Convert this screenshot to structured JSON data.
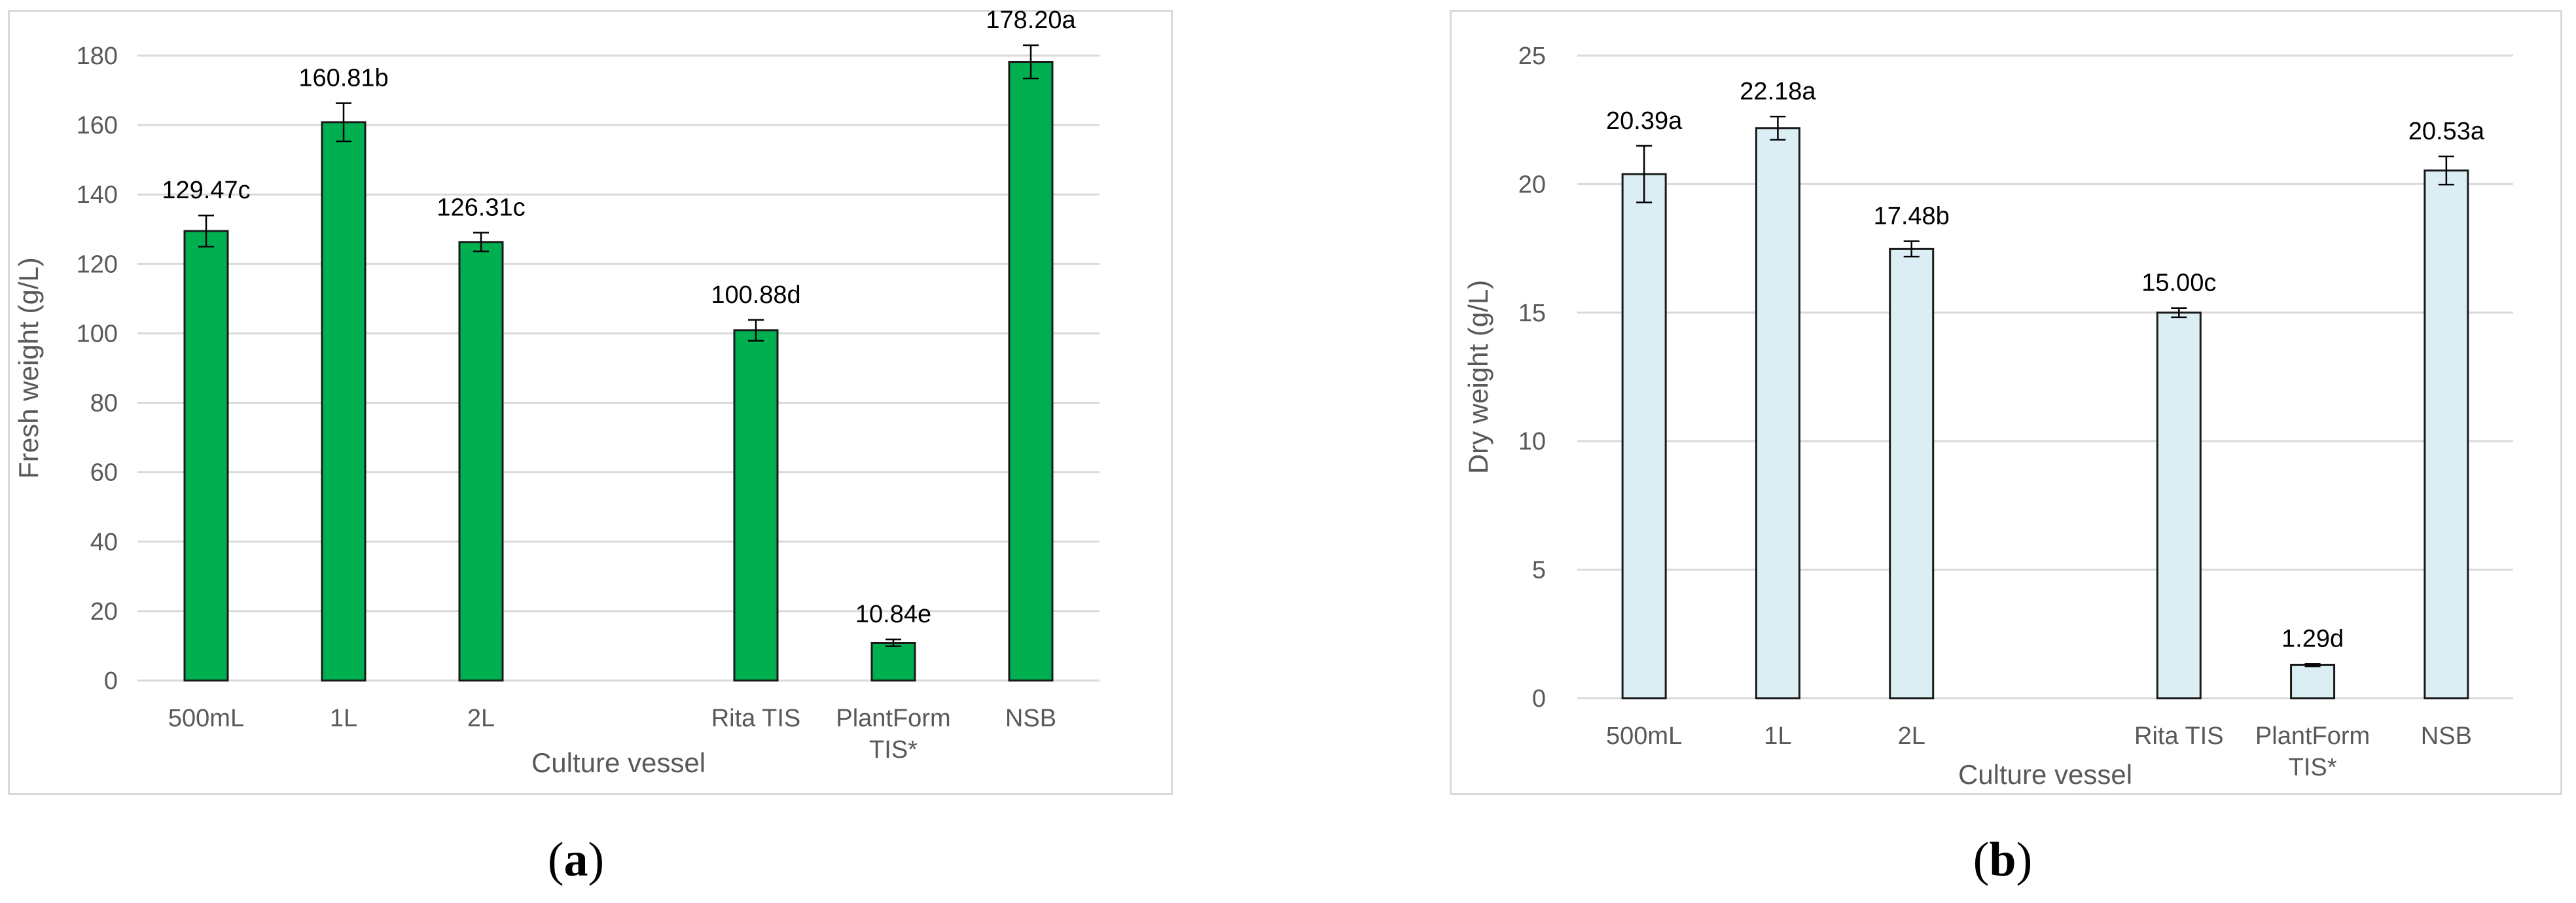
{
  "chart_data": [
    {
      "type": "bar",
      "panel_label": "a",
      "xlabel": "Culture vessel",
      "ylabel": "Fresh weight (g/L)",
      "ylim": [
        0,
        180
      ],
      "yticks": [
        "0",
        "20",
        "40",
        "60",
        "80",
        "100",
        "120",
        "140",
        "160",
        "180"
      ],
      "grid": true,
      "categories": [
        [
          "500mL"
        ],
        [
          "1L"
        ],
        [
          "2L"
        ],
        [
          ""
        ],
        [
          "Rita TIS"
        ],
        [
          "PlantForm",
          "TIS*"
        ],
        [
          "NSB"
        ]
      ],
      "values": [
        129.47,
        160.81,
        126.31,
        null,
        100.88,
        10.84,
        178.2
      ],
      "errors": [
        4.5,
        5.5,
        2.7,
        null,
        3.0,
        1.0,
        4.8
      ],
      "data_labels": [
        "129.47c",
        "160.81b",
        "126.31c",
        "",
        "100.88d",
        "10.84e",
        "178.20a"
      ],
      "bar_color": "#00b050",
      "bar_edge_color": "#1a1a1a"
    },
    {
      "type": "bar",
      "panel_label": "b",
      "xlabel": "Culture vessel",
      "ylabel": "Dry weight (g/L)",
      "ylim": [
        0,
        25
      ],
      "yticks": [
        "0",
        "5",
        "10",
        "15",
        "20",
        "25"
      ],
      "grid": true,
      "categories": [
        [
          "500mL"
        ],
        [
          "1L"
        ],
        [
          "2L"
        ],
        [
          ""
        ],
        [
          "Rita TIS"
        ],
        [
          "PlantForm",
          "TIS*"
        ],
        [
          "NSB"
        ]
      ],
      "values": [
        20.39,
        22.18,
        17.48,
        null,
        15.0,
        1.29,
        20.53
      ],
      "errors": [
        1.1,
        0.45,
        0.3,
        null,
        0.18,
        0.05,
        0.55
      ],
      "data_labels": [
        "20.39a",
        "22.18a",
        "17.48b",
        "",
        "15.00c",
        "1.29d",
        "20.53a"
      ],
      "bar_color": "#dbeef4",
      "bar_edge_color": "#1a1a1a"
    }
  ]
}
